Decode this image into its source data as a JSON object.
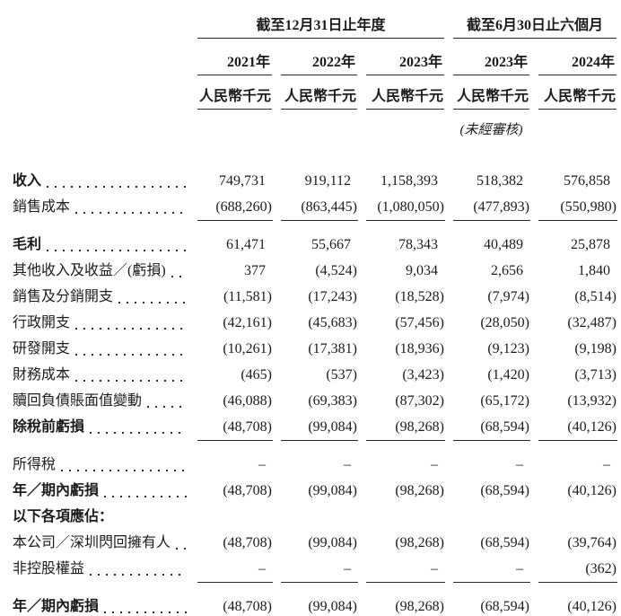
{
  "colors": {
    "text": "#1c1c1c",
    "rule": "#2a2a2a"
  },
  "table": {
    "groups": [
      {
        "label": "截至12月31日止年度",
        "span": 3
      },
      {
        "label": "截至6月30日止六個月",
        "span": 2
      }
    ],
    "columns": [
      {
        "year": "2021年",
        "unit": "人民幣千元",
        "note": ""
      },
      {
        "year": "2022年",
        "unit": "人民幣千元",
        "note": ""
      },
      {
        "year": "2023年",
        "unit": "人民幣千元",
        "note": ""
      },
      {
        "year": "2023年",
        "unit": "人民幣千元",
        "note": "(未經審核)"
      },
      {
        "year": "2024年",
        "unit": "人民幣千元",
        "note": ""
      }
    ],
    "rows": [
      {
        "label": "收入",
        "bold": true,
        "values": [
          "749,731",
          "919,112",
          "1,158,393",
          "518,382",
          "576,858"
        ]
      },
      {
        "label": "銷售成本",
        "bold": false,
        "underline": true,
        "values": [
          "(688,260)",
          "(863,445)",
          "(1,080,050)",
          "(477,893)",
          "(550,980)"
        ]
      },
      {
        "label": "毛利",
        "bold": true,
        "values": [
          "61,471",
          "55,667",
          "78,343",
          "40,489",
          "25,878"
        ]
      },
      {
        "label": "其他收入及收益／(虧損)",
        "bold": false,
        "values": [
          "377",
          "(4,524)",
          "9,034",
          "2,656",
          "1,840"
        ]
      },
      {
        "label": "銷售及分銷開支",
        "bold": false,
        "values": [
          "(11,581)",
          "(17,243)",
          "(18,528)",
          "(7,974)",
          "(8,514)"
        ]
      },
      {
        "label": "行政開支",
        "bold": false,
        "values": [
          "(42,161)",
          "(45,683)",
          "(57,456)",
          "(28,050)",
          "(32,487)"
        ]
      },
      {
        "label": "研發開支",
        "bold": false,
        "values": [
          "(10,261)",
          "(17,381)",
          "(18,936)",
          "(9,123)",
          "(9,198)"
        ]
      },
      {
        "label": "財務成本",
        "bold": false,
        "values": [
          "(465)",
          "(537)",
          "(3,423)",
          "(1,420)",
          "(3,713)"
        ]
      },
      {
        "label": "贖回負債賬面值變動",
        "bold": false,
        "values": [
          "(46,088)",
          "(69,383)",
          "(87,302)",
          "(65,172)",
          "(13,932)"
        ]
      },
      {
        "label": "除稅前虧損",
        "bold": true,
        "underline": true,
        "values": [
          "(48,708)",
          "(99,084)",
          "(98,268)",
          "(68,594)",
          "(40,126)"
        ]
      },
      {
        "label": "所得稅",
        "bold": false,
        "values": [
          "–",
          "–",
          "–",
          "–",
          "–"
        ]
      },
      {
        "label": "年／期內虧損",
        "bold": true,
        "values": [
          "(48,708)",
          "(99,084)",
          "(98,268)",
          "(68,594)",
          "(40,126)"
        ]
      },
      {
        "label": "以下各項應佔：",
        "bold": true,
        "label_only": true,
        "values": [
          "",
          "",
          "",
          "",
          ""
        ]
      },
      {
        "label": "本公司／深圳閃回擁有人",
        "bold": false,
        "values": [
          "(48,708)",
          "(99,084)",
          "(98,268)",
          "(68,594)",
          "(39,764)"
        ]
      },
      {
        "label": "非控股權益",
        "bold": false,
        "underline": true,
        "values": [
          "–",
          "–",
          "–",
          "–",
          "(362)"
        ]
      },
      {
        "label": "年／期內虧損",
        "bold": true,
        "double_underline": true,
        "values": [
          "(48,708)",
          "(99,084)",
          "(98,268)",
          "(68,594)",
          "(40,126)"
        ]
      }
    ]
  }
}
